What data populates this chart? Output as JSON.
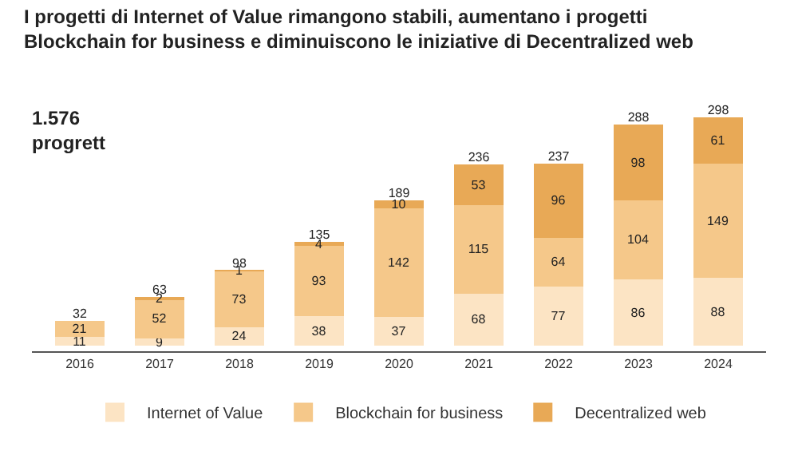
{
  "chart_data": {
    "type": "bar",
    "stacked": true,
    "data_labels": true,
    "legend": "bottom",
    "title": "I progetti di Internet of Value rimangono stabili, aumentano i progetti\nBlockchain for business e diminuiscono le iniziative di Decentralized web",
    "annotations": [
      "1.576\nprogrett"
    ],
    "categories": [
      "2016",
      "2017",
      "2018",
      "2019",
      "2020",
      "2021",
      "2022",
      "2023",
      "2024"
    ],
    "series": [
      {
        "name": "Internet of Value",
        "color": "#fce4c4",
        "values": [
          11,
          9,
          24,
          38,
          37,
          68,
          77,
          86,
          88
        ]
      },
      {
        "name": "Blockchain for business",
        "color": "#f5c88a",
        "values": [
          21,
          52,
          73,
          93,
          142,
          115,
          64,
          104,
          149
        ]
      },
      {
        "name": "Decentralized web",
        "color": "#e8a956",
        "values": [
          null,
          2,
          1,
          4,
          10,
          53,
          96,
          98,
          61
        ]
      }
    ],
    "totals": [
      "32",
      "63",
      "98",
      "135",
      "189",
      "236",
      "237",
      "288",
      "298"
    ]
  }
}
